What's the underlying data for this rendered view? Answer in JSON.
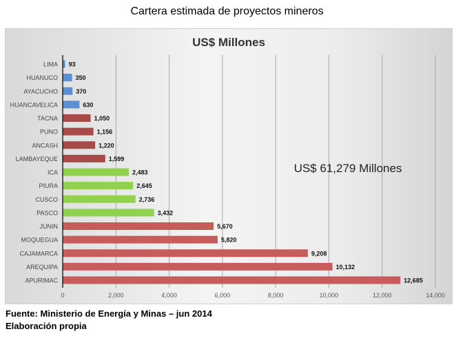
{
  "page_title": "Cartera estimada de proyectos mineros",
  "footer": {
    "source": "Fuente: Ministerio de Energía y Minas – jun 2014",
    "note": "Elaboración propia"
  },
  "chart_data": {
    "type": "bar",
    "orientation": "horizontal",
    "title": "US$ Millones",
    "annotation": "US$ 61,279 Millones",
    "categories": [
      "LIMA",
      "HUANUCO",
      "AYACUCHO",
      "HUANCAVELICA",
      "TACNA",
      "PUNO",
      "ANCASH",
      "LAMBAYEQUE",
      "ICA",
      "PIURA",
      "CUSCO",
      "PASCO",
      "JUNIN",
      "MOQUEGUA",
      "CAJAMARCA",
      "AREQUIPA",
      "APURIMAC"
    ],
    "values": [
      93,
      350,
      370,
      630,
      1050,
      1156,
      1220,
      1599,
      2483,
      2645,
      2736,
      3432,
      5670,
      5820,
      9208,
      10132,
      12685
    ],
    "value_labels": [
      "93",
      "350",
      "370",
      "630",
      "1,050",
      "1,156",
      "1,220",
      "1,599",
      "2,483",
      "2,645",
      "2,736",
      "3,432",
      "5,670",
      "5,820",
      "9,208",
      "10,132",
      "12,685"
    ],
    "bar_colors": [
      "#5b8fcf",
      "#5b8fcf",
      "#5b8fcf",
      "#5b8fcf",
      "#a94a4a",
      "#a94a4a",
      "#a94a4a",
      "#a94a4a",
      "#92d050",
      "#92d050",
      "#92d050",
      "#92d050",
      "#c65c5c",
      "#c65c5c",
      "#c65c5c",
      "#c65c5c",
      "#c65c5c"
    ],
    "xlim": [
      0,
      14000
    ],
    "x_ticks": [
      0,
      2000,
      4000,
      6000,
      8000,
      10000,
      12000,
      14000
    ],
    "x_tick_labels": [
      "0",
      "2,000",
      "4,000",
      "6,000",
      "8,000",
      "10,000",
      "12,000",
      "14,000"
    ],
    "grid": "vertical",
    "legend": "none"
  }
}
